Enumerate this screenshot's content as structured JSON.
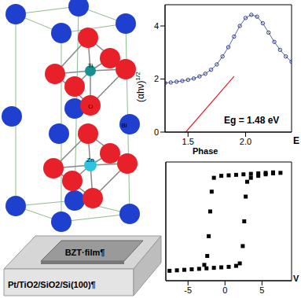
{
  "crystal": {
    "labels": [
      "Ti",
      "Bi",
      "O",
      "Zn"
    ]
  },
  "device": {
    "film": "BZT·film¶",
    "substrate": "Pt/TiO2/SiO2/Si(100)¶"
  },
  "chart_data": [
    {
      "type": "line",
      "x_label": "E",
      "y_label": {
        "text": "(αhν)",
        "superscript": "1/2"
      },
      "annotation": "Eg = 1.48 eV",
      "xlim": [
        1.3,
        2.4
      ],
      "xticks": [
        1.5,
        {
          "value": 2,
          "label": "2.0"
        }
      ],
      "ylim": [
        0,
        4.8
      ],
      "yticks": [
        0,
        2,
        4
      ],
      "grid": false,
      "series": [
        {
          "color": "#2f3d8f",
          "marker": "circle",
          "x": [
            1.3,
            1.35,
            1.4,
            1.45,
            1.5,
            1.55,
            1.6,
            1.65,
            1.7,
            1.75,
            1.8,
            1.85,
            1.9,
            1.95,
            2.0,
            2.05,
            2.1,
            2.15,
            2.2,
            2.25,
            2.3,
            2.35,
            2.4
          ],
          "values": [
            1.85,
            1.87,
            1.9,
            1.93,
            1.97,
            2.02,
            2.1,
            2.2,
            2.35,
            2.55,
            2.85,
            3.2,
            3.6,
            4.0,
            4.3,
            4.42,
            4.35,
            4.1,
            3.75,
            3.4,
            3.1,
            2.85,
            2.65
          ]
        },
        {
          "color": "#e0202a",
          "line_style": "solid",
          "x": [
            1.48,
            1.9
          ],
          "values": [
            0,
            2.1
          ]
        }
      ]
    },
    {
      "type": "scatter",
      "title": "Phase",
      "x_label": "V",
      "xlim": [
        -8,
        9
      ],
      "xticks": [
        -5,
        0,
        5
      ],
      "ylim": [
        -1.2,
        1.2
      ],
      "tick_labels": "x",
      "grid": false,
      "color": "#000000",
      "marker": "square",
      "x": [
        -7.5,
        -6.5,
        -5.5,
        -4.5,
        -3.5,
        -2.5,
        -1.5,
        -0.5,
        0.5,
        1.5,
        2.0,
        2.4,
        2.6,
        2.8,
        3.0,
        3.5,
        4.5,
        5.5,
        6.5,
        7.5,
        6.5,
        5.5,
        4.5,
        3.5,
        2.5,
        1.5,
        0.5,
        -0.5,
        -1.5,
        -1.8,
        -2.0,
        -2.2,
        -2.4,
        -2.8
      ],
      "values": [
        -1.0,
        -0.99,
        -0.98,
        -0.97,
        -0.96,
        -0.95,
        -0.94,
        -0.93,
        -0.92,
        -0.9,
        -0.85,
        -0.5,
        0.0,
        0.5,
        0.8,
        0.88,
        0.92,
        0.95,
        0.97,
        0.98,
        0.99,
        0.98,
        0.97,
        0.96,
        0.95,
        0.94,
        0.93,
        0.92,
        0.88,
        0.6,
        0.2,
        -0.3,
        -0.7,
        -0.88
      ]
    }
  ]
}
